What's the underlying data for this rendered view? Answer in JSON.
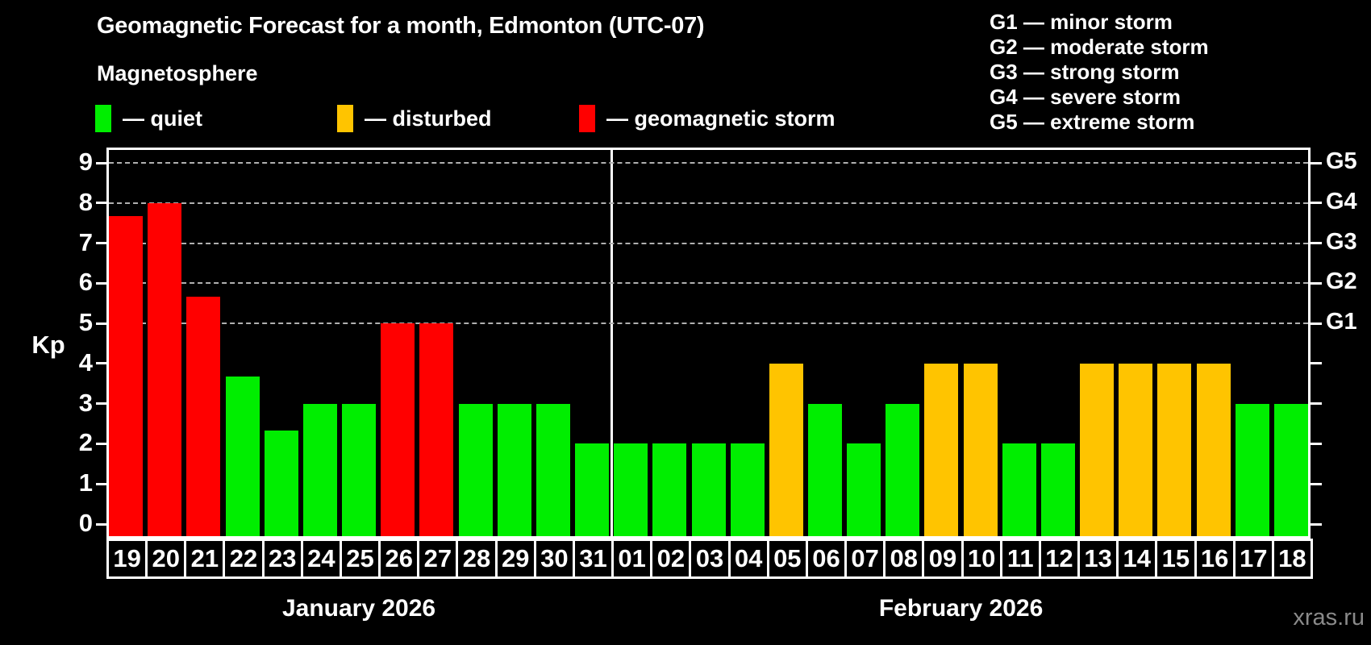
{
  "header": {
    "title": "Geomagnetic Forecast for a month, Edmonton (UTC-07)",
    "subtitle": "Magnetosphere",
    "legend": [
      {
        "label": "— quiet",
        "status": "quiet"
      },
      {
        "label": "— disturbed",
        "status": "disturbed"
      },
      {
        "label": "— geomagnetic storm",
        "status": "storm"
      }
    ],
    "g_scale_legend": [
      "G1 — minor storm",
      "G2 — moderate storm",
      "G3 — strong storm",
      "G4 — severe storm",
      "G5 — extreme storm"
    ]
  },
  "colors": {
    "quiet": "#00ee00",
    "disturbed": "#ffc400",
    "storm": "#ff0000",
    "grid": "#b0b0b0",
    "axis": "#ffffff",
    "watermark": "#8a8a8a"
  },
  "chart_data": {
    "type": "bar",
    "title": "Geomagnetic Forecast for a month, Edmonton (UTC-07)",
    "ylabel": "Kp",
    "ylim": [
      0,
      9
    ],
    "y_ticks": [
      "0",
      "1",
      "2",
      "3",
      "4",
      "5",
      "6",
      "7",
      "8",
      "9"
    ],
    "grid_levels": [
      5,
      6,
      7,
      8,
      9
    ],
    "grid": "dashed horizontal lines at Kp 5-9 only",
    "right_axis": [
      {
        "kp": 5,
        "label": "G1"
      },
      {
        "kp": 6,
        "label": "G2"
      },
      {
        "kp": 7,
        "label": "G3"
      },
      {
        "kp": 8,
        "label": "G4"
      },
      {
        "kp": 9,
        "label": "G5"
      }
    ],
    "months": [
      {
        "label": "January 2026",
        "days": [
          {
            "day": "19",
            "kp": 7.67,
            "status": "storm"
          },
          {
            "day": "20",
            "kp": 8,
            "status": "storm"
          },
          {
            "day": "21",
            "kp": 5.67,
            "status": "storm"
          },
          {
            "day": "22",
            "kp": 3.67,
            "status": "quiet"
          },
          {
            "day": "23",
            "kp": 2.33,
            "status": "quiet"
          },
          {
            "day": "24",
            "kp": 3,
            "status": "quiet"
          },
          {
            "day": "25",
            "kp": 3,
            "status": "quiet"
          },
          {
            "day": "26",
            "kp": 5,
            "status": "storm"
          },
          {
            "day": "27",
            "kp": 5,
            "status": "storm"
          },
          {
            "day": "28",
            "kp": 3,
            "status": "quiet"
          },
          {
            "day": "29",
            "kp": 3,
            "status": "quiet"
          },
          {
            "day": "30",
            "kp": 3,
            "status": "quiet"
          },
          {
            "day": "31",
            "kp": 2,
            "status": "quiet"
          }
        ]
      },
      {
        "label": "February 2026",
        "days": [
          {
            "day": "01",
            "kp": 2,
            "status": "quiet"
          },
          {
            "day": "02",
            "kp": 2,
            "status": "quiet"
          },
          {
            "day": "03",
            "kp": 2,
            "status": "quiet"
          },
          {
            "day": "04",
            "kp": 2,
            "status": "quiet"
          },
          {
            "day": "05",
            "kp": 4,
            "status": "disturbed"
          },
          {
            "day": "06",
            "kp": 3,
            "status": "quiet"
          },
          {
            "day": "07",
            "kp": 2,
            "status": "quiet"
          },
          {
            "day": "08",
            "kp": 3,
            "status": "quiet"
          },
          {
            "day": "09",
            "kp": 4,
            "status": "disturbed"
          },
          {
            "day": "10",
            "kp": 4,
            "status": "disturbed"
          },
          {
            "day": "11",
            "kp": 2,
            "status": "quiet"
          },
          {
            "day": "12",
            "kp": 2,
            "status": "quiet"
          },
          {
            "day": "13",
            "kp": 4,
            "status": "disturbed"
          },
          {
            "day": "14",
            "kp": 4,
            "status": "disturbed"
          },
          {
            "day": "15",
            "kp": 4,
            "status": "disturbed"
          },
          {
            "day": "16",
            "kp": 4,
            "status": "disturbed"
          },
          {
            "day": "17",
            "kp": 3,
            "status": "quiet"
          },
          {
            "day": "18",
            "kp": 3,
            "status": "quiet"
          }
        ]
      }
    ]
  },
  "watermark": "xras.ru"
}
